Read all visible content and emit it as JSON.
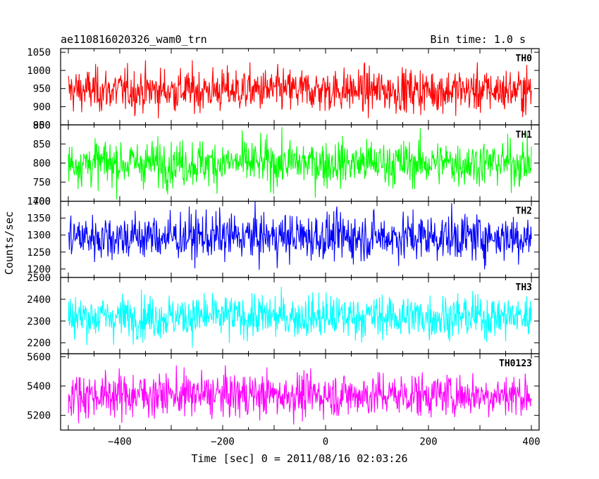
{
  "header": {
    "title": "ae110816020326_wam0_trn",
    "bin_time": "Bin time: 1.0 s"
  },
  "axes": {
    "ylabel": "Counts/sec",
    "xlabel": "Time [sec] 0 = 2011/08/16 02:03:26"
  },
  "chart_data": {
    "type": "line",
    "title": "ae110816020326_wam0_trn",
    "xlabel": "Time [sec] 0 = 2011/08/16 02:03:26",
    "ylabel": "Counts/sec",
    "xlim": [
      -515,
      415
    ],
    "x_start": -500,
    "x_end": 400,
    "x_step": 1,
    "xticks": [
      -400,
      -200,
      0,
      200,
      400
    ],
    "grid": false,
    "panels": [
      {
        "name": "TH0",
        "color": "#ff0000",
        "ylim": [
          850,
          1060
        ],
        "yticks": [
          850,
          900,
          950,
          1000,
          1050
        ],
        "mean": 945,
        "amplitude": 30,
        "min": 855,
        "max": 1060
      },
      {
        "name": "TH1",
        "color": "#00ff00",
        "ylim": [
          700,
          900
        ],
        "yticks": [
          700,
          750,
          800,
          850,
          900
        ],
        "mean": 800,
        "amplitude": 30,
        "min": 705,
        "max": 900
      },
      {
        "name": "TH2",
        "color": "#0000ff",
        "ylim": [
          1175,
          1400
        ],
        "yticks": [
          1200,
          1250,
          1300,
          1350,
          1400
        ],
        "mean": 1295,
        "amplitude": 35,
        "min": 1185,
        "max": 1400
      },
      {
        "name": "TH3",
        "color": "#00ffff",
        "ylim": [
          2150,
          2500
        ],
        "yticks": [
          2200,
          2300,
          2400,
          2500
        ],
        "mean": 2320,
        "amplitude": 50,
        "min": 2160,
        "max": 2500
      },
      {
        "name": "TH0123",
        "color": "#ff00ff",
        "ylim": [
          5100,
          5620
        ],
        "yticks": [
          5200,
          5400,
          5600
        ],
        "mean": 5340,
        "amplitude": 75,
        "min": 5110,
        "max": 5600
      }
    ]
  }
}
